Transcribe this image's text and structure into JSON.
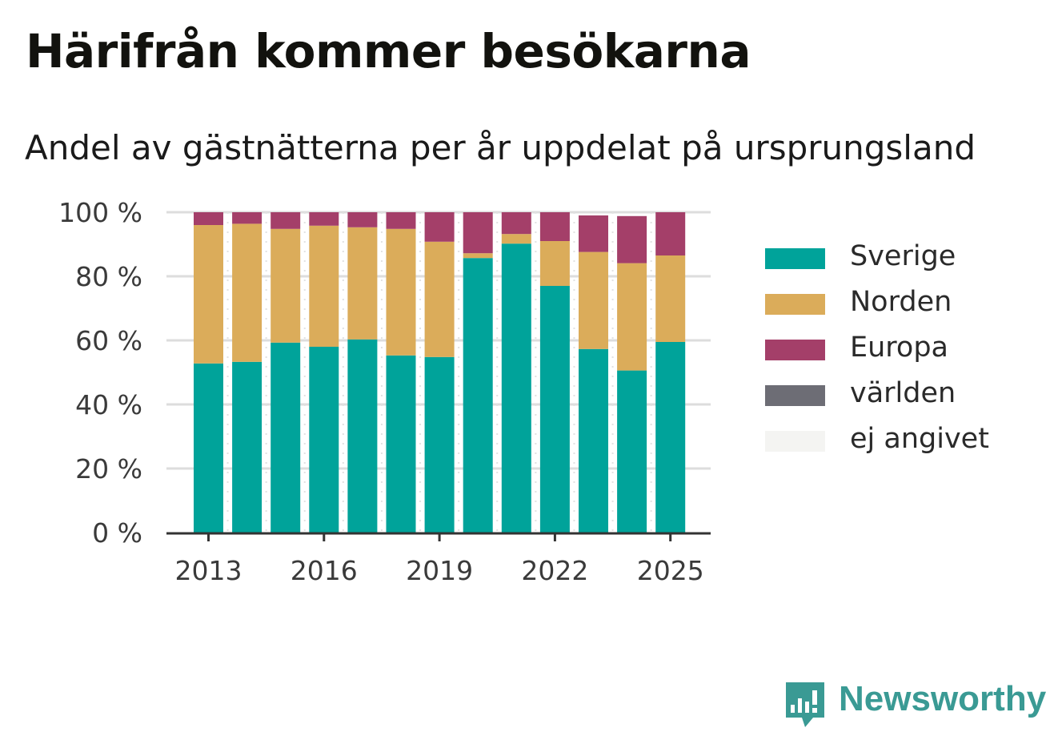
{
  "title": "Härifrån kommer besökarna",
  "subtitle": "Andel av gästnätterna per år uppdelat på ursprungsland",
  "logo_text": "Newsworthy",
  "colors": {
    "Sverige": "#00a39a",
    "Norden": "#dbac5a",
    "Europa": "#a43f69",
    "världen": "#6d6d75",
    "ej angivet": "#f4f4f2",
    "grid": "#dddddd",
    "axis": "#333333",
    "logo": "#3a9a94"
  },
  "chart_data": {
    "type": "bar",
    "stacked": true,
    "categories": [
      "2013",
      "2014",
      "2015",
      "2016",
      "2017",
      "2018",
      "2019",
      "2020",
      "2021",
      "2022",
      "2023",
      "2024",
      "2025"
    ],
    "x_tick_labels": [
      "2013",
      "2016",
      "2019",
      "2022",
      "2025"
    ],
    "y_ticks": [
      "0 %",
      "20 %",
      "40 %",
      "60 %",
      "80 %",
      "100 %"
    ],
    "ylim": [
      0,
      100
    ],
    "grid": true,
    "legend_position": "right",
    "series": [
      {
        "name": "Sverige",
        "values": [
          52.8,
          53.3,
          59.3,
          58.0,
          60.3,
          55.3,
          54.8,
          85.7,
          90.2,
          77.0,
          57.3,
          50.6,
          59.5
        ]
      },
      {
        "name": "Norden",
        "values": [
          43.2,
          43.1,
          35.5,
          37.8,
          35.0,
          39.5,
          36.0,
          1.5,
          3.0,
          14.0,
          30.3,
          33.5,
          27.0
        ]
      },
      {
        "name": "Europa",
        "values": [
          4.0,
          3.6,
          5.2,
          4.2,
          4.7,
          5.2,
          9.2,
          12.8,
          6.8,
          9.0,
          11.4,
          14.7,
          13.5
        ]
      },
      {
        "name": "världen",
        "values": [
          0,
          0,
          0,
          0,
          0,
          0,
          0,
          0,
          0,
          0,
          0,
          0,
          0
        ]
      },
      {
        "name": "ej angivet",
        "values": [
          0,
          0,
          0,
          0,
          0,
          0,
          0,
          0,
          0,
          0,
          0,
          0,
          0
        ]
      }
    ]
  }
}
